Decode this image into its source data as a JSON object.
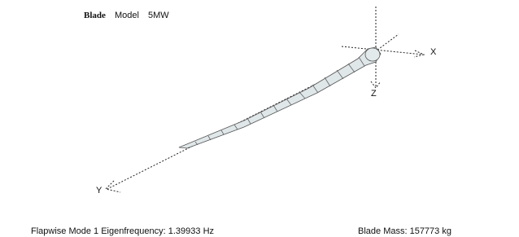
{
  "header": {
    "blade": "Blade",
    "model": "Model",
    "name": "5MW"
  },
  "axes": {
    "x": "X",
    "y": "Y",
    "z": "Z"
  },
  "footer": {
    "frequency": "Flapwise Mode 1 Eigenfrequency: 1.39933 Hz",
    "mass": "Blade Mass: 157773 kg"
  }
}
